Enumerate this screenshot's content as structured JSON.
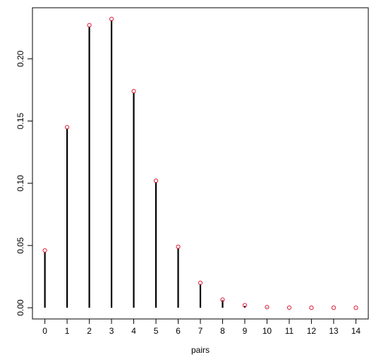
{
  "chart_data": {
    "type": "scatter",
    "title": "",
    "xlabel": "pairs",
    "ylabel": "",
    "x": [
      0,
      1,
      2,
      3,
      4,
      5,
      6,
      7,
      8,
      9,
      10,
      11,
      12,
      13,
      14
    ],
    "series": [
      {
        "style": "vertical-lines",
        "color": "#000000",
        "values": [
          0.045,
          0.144,
          0.226,
          0.231,
          0.173,
          0.101,
          0.048,
          0.019,
          0.006,
          0.0015,
          0.0003,
          0.0001,
          0.0,
          0.0,
          0.0
        ]
      },
      {
        "style": "points",
        "color": "#e0203a",
        "values": [
          0.046,
          0.145,
          0.227,
          0.232,
          0.174,
          0.102,
          0.049,
          0.02,
          0.0065,
          0.002,
          0.0005,
          0.0001,
          0.0,
          0.0,
          0.0
        ]
      }
    ],
    "xlim": [
      -0.56,
      14.56
    ],
    "ylim": [
      -0.009,
      0.241
    ],
    "x_ticks": [
      0,
      1,
      2,
      3,
      4,
      5,
      6,
      7,
      8,
      9,
      10,
      11,
      12,
      13,
      14
    ],
    "x_tick_labels": [
      "0",
      "1",
      "2",
      "3",
      "4",
      "5",
      "6",
      "7",
      "8",
      "9",
      "10",
      "11",
      "12",
      "13",
      "14"
    ],
    "y_ticks": [
      0.0,
      0.05,
      0.1,
      0.15,
      0.2
    ],
    "y_tick_labels": [
      "0.00",
      "0.05",
      "0.10",
      "0.15",
      "0.20"
    ],
    "grid": false,
    "legend": "none"
  }
}
